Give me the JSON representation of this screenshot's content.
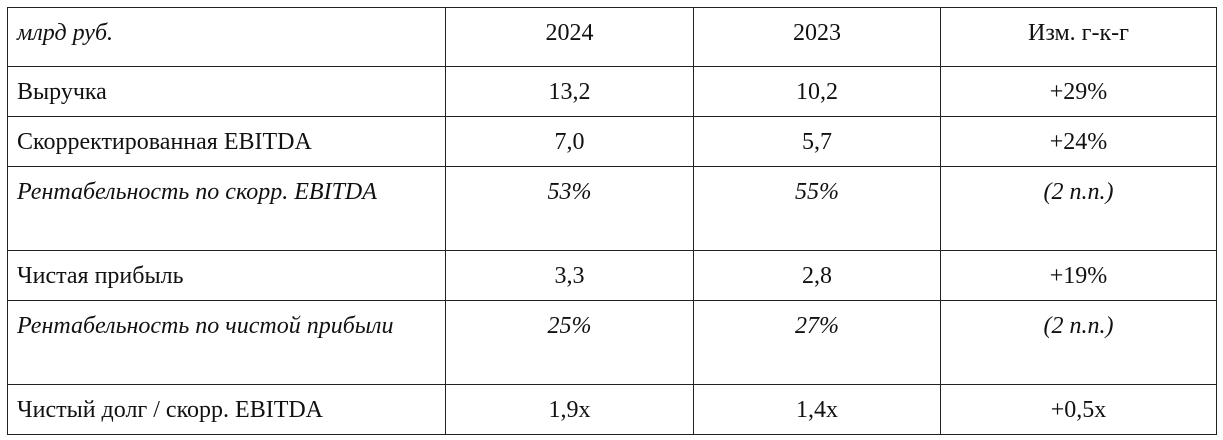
{
  "table": {
    "header": [
      "млрд руб.",
      "2024",
      "2023",
      "Изм. г-к-г"
    ],
    "rows": [
      [
        "Выручка",
        "13,2",
        "10,2",
        "+29%"
      ],
      [
        "Скорректированная EBITDA",
        "7,0",
        "5,7",
        "+24%"
      ],
      [
        "Рентабельность по скорр. EBITDA",
        "53%",
        "55%",
        "(2 п.п.)"
      ],
      [
        "Чистая прибыль",
        "3,3",
        "2,8",
        "+19%"
      ],
      [
        "Рентабельность по чистой прибыли",
        "25%",
        "27%",
        "(2 п.п.)"
      ],
      [
        "Чистый долг / скорр. EBITDA",
        "1,9x",
        "1,4x",
        "+0,5x"
      ]
    ]
  }
}
